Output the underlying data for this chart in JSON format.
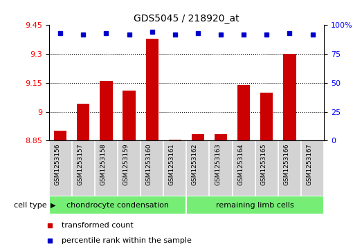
{
  "title": "GDS5045 / 218920_at",
  "samples": [
    "GSM1253156",
    "GSM1253157",
    "GSM1253158",
    "GSM1253159",
    "GSM1253160",
    "GSM1253161",
    "GSM1253162",
    "GSM1253163",
    "GSM1253164",
    "GSM1253165",
    "GSM1253166",
    "GSM1253167"
  ],
  "transformed_counts": [
    8.9,
    9.04,
    9.16,
    9.11,
    9.38,
    8.856,
    8.882,
    8.882,
    9.14,
    9.1,
    9.3,
    8.851
  ],
  "percentile_ranks": [
    93,
    92,
    93,
    92,
    94,
    92,
    93,
    92,
    92,
    92,
    93,
    92
  ],
  "cell_type_labels": [
    "chondrocyte condensation",
    "remaining limb cells"
  ],
  "y_min": 8.85,
  "y_max": 9.45,
  "y_ticks": [
    8.85,
    9.0,
    9.15,
    9.3,
    9.45
  ],
  "y_tick_labels": [
    "8.85",
    "9",
    "9.15",
    "9.3",
    "9.45"
  ],
  "right_y_ticks": [
    0,
    25,
    50,
    75,
    100
  ],
  "right_y_labels": [
    "0",
    "25",
    "50",
    "75",
    "100%"
  ],
  "bar_color": "#cc0000",
  "dot_color": "#0000cc",
  "plot_bg": "#ffffff",
  "sample_box_bg": "#d3d3d3",
  "chondrocyte_color": "#76ee76",
  "remaining_color": "#76ee76",
  "legend_bar_label": "transformed count",
  "legend_dot_label": "percentile rank within the sample",
  "grid_dotted_ticks": [
    9.0,
    9.15,
    9.3
  ]
}
